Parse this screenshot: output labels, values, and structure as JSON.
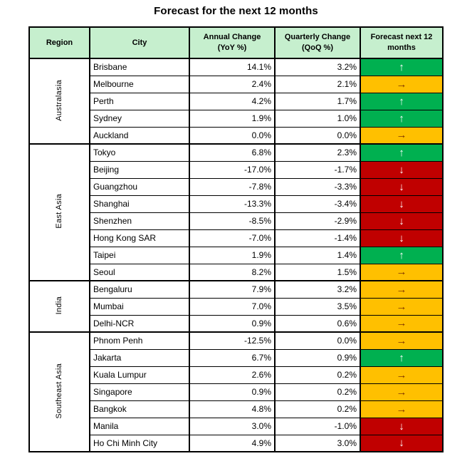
{
  "title": "Forecast for the next 12 months",
  "columns": {
    "region": "Region",
    "city": "City",
    "annual_line1": "Annual Change",
    "annual_line2": "(YoY %)",
    "quarterly_line1": "Quarterly Change",
    "quarterly_line2": "(QoQ %)",
    "forecast_line1": "Forecast next 12",
    "forecast_line2": "months"
  },
  "colors": {
    "header_bg": "#c6efce",
    "up_bg": "#00b050",
    "steady_bg": "#ffc000",
    "down_bg": "#c00000",
    "up_arrow": "#ffffff",
    "steady_arrow": "#7f3300",
    "down_arrow": "#ffffff",
    "border": "#000000"
  },
  "arrows": {
    "up": "↑",
    "steady": "→",
    "down": "↓"
  },
  "chart_data": {
    "type": "table",
    "title": "Forecast for the next 12 months",
    "columns": [
      "Region",
      "City",
      "Annual Change (YoY %)",
      "Quarterly Change (QoQ %)",
      "Forecast next 12 months"
    ],
    "groups": [
      {
        "region": "Australasia",
        "rows": [
          {
            "city": "Brisbane",
            "annual": "14.1%",
            "quarterly": "3.2%",
            "forecast": "up"
          },
          {
            "city": "Melbourne",
            "annual": "2.4%",
            "quarterly": "2.1%",
            "forecast": "steady"
          },
          {
            "city": "Perth",
            "annual": "4.2%",
            "quarterly": "1.7%",
            "forecast": "up"
          },
          {
            "city": "Sydney",
            "annual": "1.9%",
            "quarterly": "1.0%",
            "forecast": "up"
          },
          {
            "city": "Auckland",
            "annual": "0.0%",
            "quarterly": "0.0%",
            "forecast": "steady"
          }
        ]
      },
      {
        "region": "East Asia",
        "rows": [
          {
            "city": "Tokyo",
            "annual": "6.8%",
            "quarterly": "2.3%",
            "forecast": "up"
          },
          {
            "city": "Beijing",
            "annual": "-17.0%",
            "quarterly": "-1.7%",
            "forecast": "down"
          },
          {
            "city": "Guangzhou",
            "annual": "-7.8%",
            "quarterly": "-3.3%",
            "forecast": "down"
          },
          {
            "city": "Shanghai",
            "annual": "-13.3%",
            "quarterly": "-3.4%",
            "forecast": "down"
          },
          {
            "city": "Shenzhen",
            "annual": "-8.5%",
            "quarterly": "-2.9%",
            "forecast": "down"
          },
          {
            "city": "Hong Kong SAR",
            "annual": "-7.0%",
            "quarterly": "-1.4%",
            "forecast": "down"
          },
          {
            "city": "Taipei",
            "annual": "1.9%",
            "quarterly": "1.4%",
            "forecast": "up"
          },
          {
            "city": "Seoul",
            "annual": "8.2%",
            "quarterly": "1.5%",
            "forecast": "steady"
          }
        ]
      },
      {
        "region": "India",
        "rows": [
          {
            "city": "Bengaluru",
            "annual": "7.9%",
            "quarterly": "3.2%",
            "forecast": "steady"
          },
          {
            "city": "Mumbai",
            "annual": "7.0%",
            "quarterly": "3.5%",
            "forecast": "steady"
          },
          {
            "city": "Delhi-NCR",
            "annual": "0.9%",
            "quarterly": "0.6%",
            "forecast": "steady"
          }
        ]
      },
      {
        "region": "Southeast Asia",
        "rows": [
          {
            "city": "Phnom Penh",
            "annual": "-12.5%",
            "quarterly": "0.0%",
            "forecast": "steady"
          },
          {
            "city": "Jakarta",
            "annual": "6.7%",
            "quarterly": "0.9%",
            "forecast": "up"
          },
          {
            "city": "Kuala Lumpur",
            "annual": "2.6%",
            "quarterly": "0.2%",
            "forecast": "steady"
          },
          {
            "city": "Singapore",
            "annual": "0.9%",
            "quarterly": "0.2%",
            "forecast": "steady"
          },
          {
            "city": "Bangkok",
            "annual": "4.8%",
            "quarterly": "0.2%",
            "forecast": "steady"
          },
          {
            "city": "Manila",
            "annual": "3.0%",
            "quarterly": "-1.0%",
            "forecast": "down"
          },
          {
            "city": "Ho Chi Minh City",
            "annual": "4.9%",
            "quarterly": "3.0%",
            "forecast": "down"
          }
        ]
      }
    ]
  }
}
